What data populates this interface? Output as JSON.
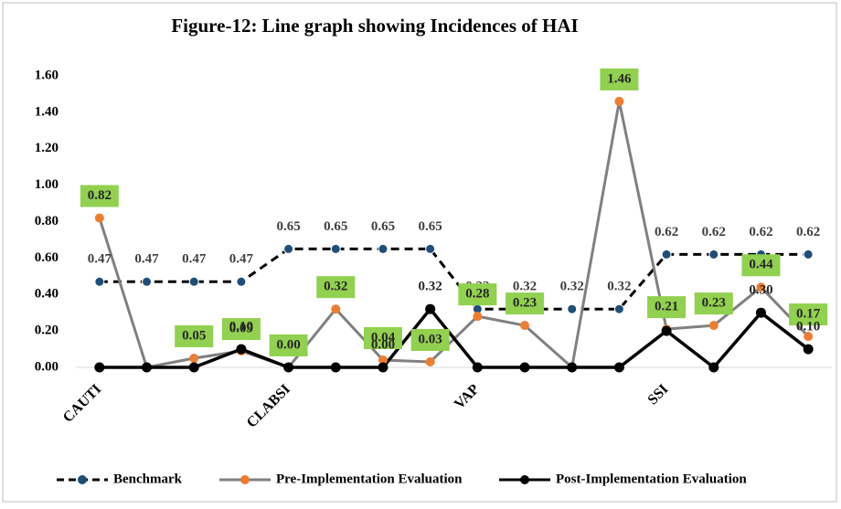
{
  "chart_data": {
    "type": "line",
    "title": "Figure-12: Line graph showing Incidences of HAI",
    "categories": [
      "CAUTI",
      null,
      null,
      null,
      "CLABSI",
      null,
      null,
      null,
      "VAP",
      null,
      null,
      null,
      "SSI",
      null,
      null,
      null
    ],
    "ylim": [
      0,
      1.6
    ],
    "yticks": [
      {
        "value": 0,
        "label": "0.00"
      },
      {
        "value": 0.2,
        "label": "0.20"
      },
      {
        "value": 0.4,
        "label": "0.40"
      },
      {
        "value": 0.6,
        "label": "0.60"
      },
      {
        "value": 0.8,
        "label": "0.80"
      },
      {
        "value": 1.0,
        "label": "1.00"
      },
      {
        "value": 1.2,
        "label": "1.20"
      },
      {
        "value": 1.4,
        "label": "1.40"
      },
      {
        "value": 1.6,
        "label": "1.60"
      }
    ],
    "grid": false,
    "legend": "bottom",
    "series": [
      {
        "name": "Benchmark",
        "color": "#1f4e79",
        "line_color": "#000000",
        "dash": true,
        "values": [
          0.47,
          0.47,
          0.47,
          0.47,
          0.65,
          0.65,
          0.65,
          0.65,
          0.32,
          0.32,
          0.32,
          0.32,
          0.62,
          0.62,
          0.62,
          0.62
        ],
        "value_labels": [
          "0.47",
          "0.47",
          "0.47",
          "0.47",
          "0.65",
          "0.65",
          "0.65",
          "0.65",
          "0.32",
          "0.32",
          "0.32",
          "0.32",
          "0.62",
          "0.62",
          "0.62",
          "0.62"
        ]
      },
      {
        "name": "Pre-Implementation Evaluation",
        "color": "#ed7d31",
        "line_color": "#808080",
        "dash": false,
        "values": [
          0.82,
          0.0,
          0.05,
          0.09,
          0.0,
          0.32,
          0.04,
          0.03,
          0.28,
          0.23,
          0.0,
          1.46,
          0.21,
          0.23,
          0.44,
          0.17
        ],
        "value_labels": [
          "0.82",
          null,
          "0.05",
          "0.09",
          "0.00",
          "0.32",
          "0.04",
          "0.03",
          "0.28",
          "0.23",
          null,
          "1.46",
          "0.21",
          "0.23",
          "0.44",
          "0.17"
        ]
      },
      {
        "name": "Post-Implementation Evaluation",
        "color": "#000000",
        "line_color": "#000000",
        "dash": false,
        "values": [
          0,
          0,
          0,
          0.1,
          0,
          0,
          0,
          0.32,
          0,
          0,
          0,
          0,
          0.2,
          0,
          0.3,
          0.1
        ],
        "value_labels": [
          null,
          null,
          null,
          "0.10",
          null,
          null,
          "0.00",
          "0.32",
          null,
          null,
          null,
          null,
          null,
          null,
          "0.30",
          "0.10"
        ]
      }
    ]
  }
}
